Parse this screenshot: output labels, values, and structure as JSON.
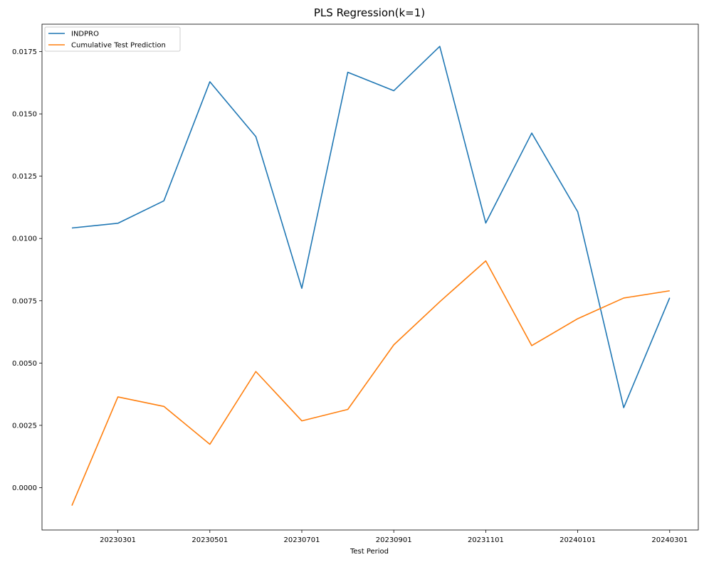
{
  "chart_data": {
    "type": "line",
    "title": "PLS Regression(k=1)",
    "xlabel": "Test Period",
    "ylabel": "",
    "x": [
      "20230201",
      "20230301",
      "20230401",
      "20230501",
      "20230601",
      "20230701",
      "20230801",
      "20230901",
      "20231001",
      "20231101",
      "20231201",
      "20240101",
      "20240201",
      "20240301"
    ],
    "x_tick_labels": [
      "20230301",
      "20230501",
      "20230701",
      "20230901",
      "20231101",
      "20240101",
      "20240301"
    ],
    "y_tick_labels": [
      "0.0000",
      "0.0025",
      "0.0050",
      "0.0075",
      "0.0100",
      "0.0125",
      "0.0150",
      "0.0175"
    ],
    "y_ticks": [
      0.0,
      0.0025,
      0.005,
      0.0075,
      0.01,
      0.0125,
      0.015,
      0.0175
    ],
    "ylim": [
      -0.0017,
      0.0186
    ],
    "grid": false,
    "legend_position": "top-left",
    "series": [
      {
        "name": "INDPRO",
        "color": "#1f77b4",
        "values": [
          0.01042,
          0.01061,
          0.01151,
          0.01629,
          0.01409,
          0.008,
          0.01667,
          0.01593,
          0.01771,
          0.01062,
          0.01423,
          0.01107,
          0.00321,
          0.00762
        ]
      },
      {
        "name": "Cumulative Test Prediction",
        "color": "#ff7f0e",
        "values": [
          -0.00072,
          0.00364,
          0.00326,
          0.00174,
          0.00466,
          0.00268,
          0.00314,
          0.00573,
          0.00746,
          0.0091,
          0.0057,
          0.00678,
          0.00761,
          0.0079
        ]
      }
    ]
  }
}
